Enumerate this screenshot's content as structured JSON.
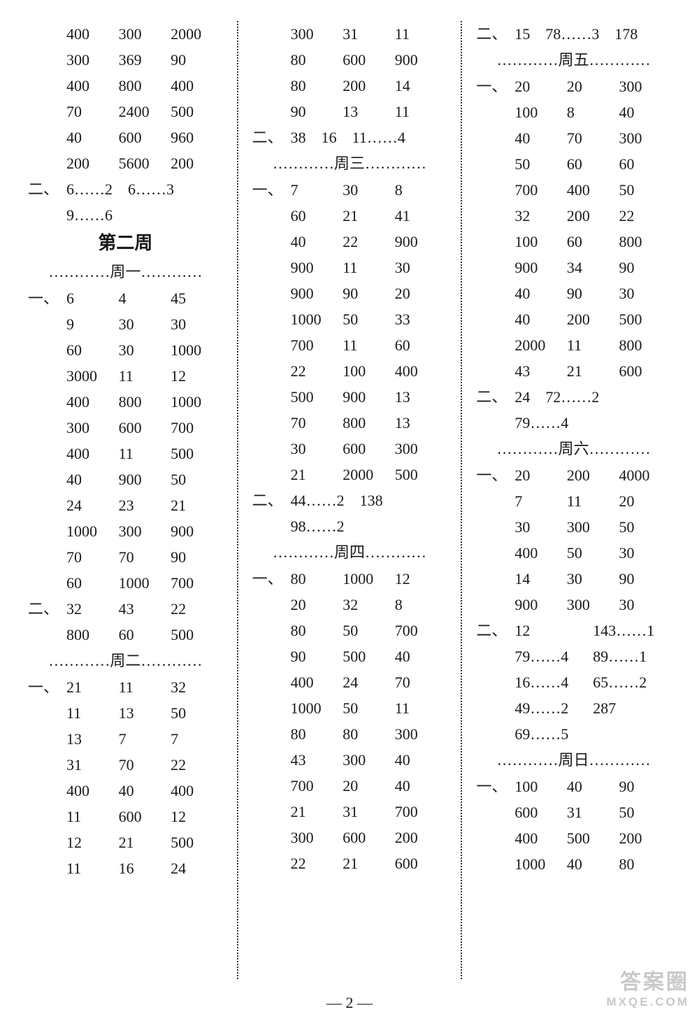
{
  "page_number": "— 2 —",
  "watermark": {
    "top": "答案圈",
    "bottom": "MXQE.COM"
  },
  "markers": {
    "one": "一、",
    "two": "二、"
  },
  "week2_title": "第二周",
  "day_labels": {
    "mon": "…………周一…………",
    "tue": "…………周二…………",
    "wed": "…………周三…………",
    "thu": "…………周四…………",
    "fri": "…………周五…………",
    "sat": "…………周六…………",
    "sun": "…………周日…………"
  },
  "colA": {
    "block1": [
      [
        "400",
        "300",
        "2000"
      ],
      [
        "300",
        "369",
        "90"
      ],
      [
        "400",
        "800",
        "400"
      ],
      [
        "70",
        "2400",
        "500"
      ],
      [
        "40",
        "600",
        "960"
      ],
      [
        "200",
        "5600",
        "200"
      ]
    ],
    "block1_sec2": [
      "6……2　6……3",
      "9……6"
    ],
    "mon_sec1": [
      [
        "6",
        "4",
        "45"
      ],
      [
        "9",
        "30",
        "30"
      ],
      [
        "60",
        "30",
        "1000"
      ],
      [
        "3000",
        "11",
        "12"
      ],
      [
        "400",
        "800",
        "1000"
      ],
      [
        "300",
        "600",
        "700"
      ],
      [
        "400",
        "11",
        "500"
      ],
      [
        "40",
        "900",
        "50"
      ],
      [
        "24",
        "23",
        "21"
      ],
      [
        "1000",
        "300",
        "900"
      ],
      [
        "70",
        "70",
        "90"
      ],
      [
        "60",
        "1000",
        "700"
      ]
    ],
    "mon_sec2": [
      [
        "32",
        "43",
        "22"
      ],
      [
        "800",
        "60",
        "500"
      ]
    ],
    "tue_sec1": [
      [
        "21",
        "11",
        "32"
      ],
      [
        "11",
        "13",
        "50"
      ],
      [
        "13",
        "7",
        "7"
      ],
      [
        "31",
        "70",
        "22"
      ],
      [
        "400",
        "40",
        "400"
      ],
      [
        "11",
        "600",
        "12"
      ],
      [
        "12",
        "21",
        "500"
      ],
      [
        "11",
        "16",
        "24"
      ]
    ]
  },
  "colB": {
    "top_block": [
      [
        "300",
        "31",
        "11"
      ],
      [
        "80",
        "600",
        "900"
      ],
      [
        "80",
        "200",
        "14"
      ],
      [
        "90",
        "13",
        "11"
      ]
    ],
    "top_sec2": "38　16　11……4",
    "wed_sec1": [
      [
        "7",
        "30",
        "8"
      ],
      [
        "60",
        "21",
        "41"
      ],
      [
        "40",
        "22",
        "900"
      ],
      [
        "900",
        "11",
        "30"
      ],
      [
        "900",
        "90",
        "20"
      ],
      [
        "1000",
        "50",
        "33"
      ],
      [
        "700",
        "11",
        "60"
      ],
      [
        "22",
        "100",
        "400"
      ],
      [
        "500",
        "900",
        "13"
      ],
      [
        "70",
        "800",
        "13"
      ],
      [
        "30",
        "600",
        "300"
      ],
      [
        "21",
        "2000",
        "500"
      ]
    ],
    "wed_sec2": [
      "44……2　138",
      "98……2"
    ],
    "thu_sec1": [
      [
        "80",
        "1000",
        "12"
      ],
      [
        "20",
        "32",
        "8"
      ],
      [
        "80",
        "50",
        "700"
      ],
      [
        "90",
        "500",
        "40"
      ],
      [
        "400",
        "24",
        "70"
      ],
      [
        "1000",
        "50",
        "11"
      ],
      [
        "80",
        "80",
        "300"
      ],
      [
        "43",
        "300",
        "40"
      ],
      [
        "700",
        "20",
        "40"
      ],
      [
        "21",
        "31",
        "700"
      ],
      [
        "300",
        "600",
        "200"
      ],
      [
        "22",
        "21",
        "600"
      ]
    ]
  },
  "colC": {
    "top_sec2": "15　78……3　178",
    "fri_sec1": [
      [
        "20",
        "20",
        "300"
      ],
      [
        "100",
        "8",
        "40"
      ],
      [
        "40",
        "70",
        "300"
      ],
      [
        "50",
        "60",
        "60"
      ],
      [
        "700",
        "400",
        "50"
      ],
      [
        "32",
        "200",
        "22"
      ],
      [
        "100",
        "60",
        "800"
      ],
      [
        "900",
        "34",
        "90"
      ],
      [
        "40",
        "90",
        "30"
      ],
      [
        "40",
        "200",
        "500"
      ],
      [
        "2000",
        "11",
        "800"
      ],
      [
        "43",
        "21",
        "600"
      ]
    ],
    "fri_sec2": [
      "24　72……2",
      "79……4"
    ],
    "sat_sec1": [
      [
        "20",
        "200",
        "4000"
      ],
      [
        "7",
        "11",
        "20"
      ],
      [
        "30",
        "300",
        "50"
      ],
      [
        "400",
        "50",
        "30"
      ],
      [
        "14",
        "30",
        "90"
      ],
      [
        "900",
        "300",
        "30"
      ]
    ],
    "sat_sec2_pairs": [
      [
        "12",
        "143……1"
      ],
      [
        "79……4",
        "89……1"
      ],
      [
        "16……4",
        "65……2"
      ],
      [
        "49……2",
        "287"
      ],
      [
        "69……5",
        ""
      ]
    ],
    "sun_sec1": [
      [
        "100",
        "40",
        "90"
      ],
      [
        "600",
        "31",
        "50"
      ],
      [
        "400",
        "500",
        "200"
      ],
      [
        "1000",
        "40",
        "80"
      ]
    ]
  }
}
